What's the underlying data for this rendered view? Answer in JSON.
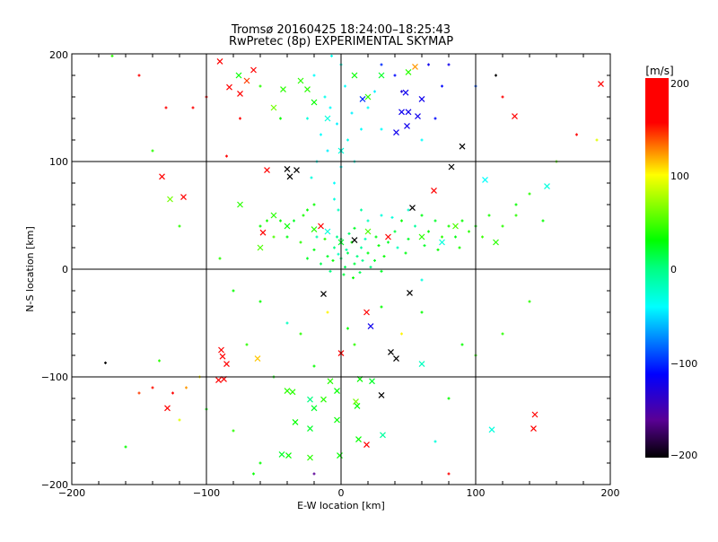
{
  "chart_data": {
    "type": "scatter",
    "title": "Tromsø 20160425 18:24:00–18:25:43",
    "subtitle": "RwPretec (8p) EXPERIMENTAL SKYMAP",
    "xlabel": "E-W location [km]",
    "ylabel": "N-S location [km]",
    "xlim": [
      -200,
      200
    ],
    "ylim": [
      -200,
      200
    ],
    "grid": true,
    "x_ticks": [
      "−200",
      "−100",
      "0",
      "100",
      "200"
    ],
    "y_ticks": [
      "−200",
      "−100",
      "0",
      "100",
      "200"
    ],
    "colorbar": {
      "label": "[m/s]",
      "range": [
        -200,
        200
      ],
      "ticks": [
        "200",
        "100",
        "0",
        "−100",
        "−200"
      ],
      "stops": [
        [
          -200,
          "#000000"
        ],
        [
          -160,
          "#5a0096"
        ],
        [
          -112,
          "#0000ff"
        ],
        [
          -41,
          "#00ffff"
        ],
        [
          0,
          "#00ff80"
        ],
        [
          29,
          "#00ff00"
        ],
        [
          98,
          "#ffff00"
        ],
        [
          153,
          "#ff0000"
        ],
        [
          200,
          "#ff0000"
        ]
      ]
    },
    "series_note_fields": [
      "x_km",
      "y_km",
      "velocity_mps"
    ],
    "crosses": [
      [
        -65,
        185,
        180
      ],
      [
        -83,
        169,
        170
      ],
      [
        -43,
        167,
        40
      ],
      [
        -55,
        92,
        170
      ],
      [
        -133,
        86,
        170
      ],
      [
        -117,
        67,
        170
      ],
      [
        -127,
        65,
        60
      ],
      [
        -58,
        34,
        170
      ],
      [
        -40,
        93,
        -200
      ],
      [
        -33,
        92,
        -200
      ],
      [
        -38,
        86,
        -200
      ],
      [
        90,
        114,
        -200
      ],
      [
        82,
        95,
        -200
      ],
      [
        53,
        57,
        -200
      ],
      [
        69,
        73,
        170
      ],
      [
        129,
        142,
        170
      ],
      [
        193,
        172,
        170
      ],
      [
        153,
        77,
        -30
      ],
      [
        107,
        83,
        -40
      ],
      [
        48,
        164,
        -120
      ],
      [
        50,
        146,
        -120
      ],
      [
        45,
        146,
        -120
      ],
      [
        57,
        142,
        -120
      ],
      [
        49,
        133,
        -120
      ],
      [
        41,
        127,
        -120
      ],
      [
        60,
        158,
        -120
      ],
      [
        16,
        158,
        -100
      ],
      [
        -13,
        -23,
        -200
      ],
      [
        19,
        -40,
        170
      ],
      [
        22,
        -53,
        -120
      ],
      [
        51,
        -22,
        -200
      ],
      [
        37,
        -77,
        -200
      ],
      [
        41,
        -83,
        -200
      ],
      [
        60,
        -88,
        -20
      ],
      [
        0,
        -78,
        170
      ],
      [
        -89,
        -75,
        170
      ],
      [
        -88,
        -81,
        170
      ],
      [
        -85,
        -88,
        170
      ],
      [
        -62,
        -83,
        110
      ],
      [
        -91,
        -103,
        170
      ],
      [
        -87,
        -102,
        170
      ],
      [
        -129,
        -129,
        170
      ],
      [
        144,
        -135,
        170
      ],
      [
        143,
        -148,
        170
      ],
      [
        112,
        -149,
        -30
      ],
      [
        19,
        -163,
        170
      ],
      [
        13,
        -158,
        30
      ],
      [
        -40,
        -113,
        40
      ],
      [
        -36,
        -114,
        40
      ],
      [
        -23,
        -121,
        0
      ],
      [
        -20,
        -129,
        20
      ],
      [
        -8,
        -104,
        40
      ],
      [
        -3,
        -113,
        30
      ],
      [
        -13,
        -121,
        40
      ],
      [
        14,
        -102,
        30
      ],
      [
        23,
        -104,
        20
      ],
      [
        30,
        -117,
        -200
      ],
      [
        11,
        -123,
        60
      ],
      [
        -3,
        -140,
        30
      ],
      [
        -23,
        -148,
        20
      ],
      [
        -34,
        -142,
        30
      ],
      [
        -39,
        -173,
        30
      ],
      [
        -44,
        -172,
        20
      ],
      [
        -23,
        -175,
        40
      ],
      [
        -1,
        -173,
        30
      ],
      [
        12,
        -127,
        30
      ],
      [
        31,
        -154,
        -10
      ],
      [
        -30,
        175,
        40
      ],
      [
        -25,
        167,
        40
      ],
      [
        10,
        180,
        30
      ],
      [
        30,
        180,
        20
      ],
      [
        50,
        183,
        40
      ],
      [
        55,
        188,
        120
      ],
      [
        20,
        160,
        40
      ],
      [
        -20,
        155,
        30
      ],
      [
        -10,
        140,
        -30
      ],
      [
        0,
        110,
        -30
      ],
      [
        -50,
        150,
        60
      ],
      [
        -70,
        175,
        140
      ],
      [
        -75,
        163,
        170
      ],
      [
        -90,
        193,
        170
      ],
      [
        -76,
        180,
        30
      ],
      [
        -40,
        40,
        30
      ],
      [
        -20,
        37,
        40
      ],
      [
        -15,
        40,
        170
      ],
      [
        -10,
        35,
        -30
      ],
      [
        0,
        25,
        20
      ],
      [
        10,
        27,
        -200
      ],
      [
        20,
        35,
        50
      ],
      [
        35,
        30,
        170
      ],
      [
        60,
        30,
        40
      ],
      [
        75,
        25,
        -30
      ],
      [
        85,
        40,
        50
      ],
      [
        115,
        25,
        40
      ],
      [
        -50,
        50,
        40
      ],
      [
        -60,
        20,
        50
      ],
      [
        -75,
        60,
        40
      ]
    ],
    "dots": [
      [
        0,
        10,
        5
      ],
      [
        5,
        15,
        10
      ],
      [
        -5,
        20,
        0
      ],
      [
        10,
        5,
        15
      ],
      [
        15,
        20,
        -10
      ],
      [
        -10,
        12,
        20
      ],
      [
        3,
        2,
        10
      ],
      [
        8,
        25,
        30
      ],
      [
        -3,
        30,
        -5
      ],
      [
        12,
        12,
        0
      ],
      [
        20,
        15,
        25
      ],
      [
        -15,
        5,
        10
      ],
      [
        18,
        28,
        -20
      ],
      [
        25,
        8,
        20
      ],
      [
        -8,
        -2,
        0
      ],
      [
        2,
        -5,
        15
      ],
      [
        28,
        22,
        30
      ],
      [
        -20,
        18,
        25
      ],
      [
        6,
        33,
        5
      ],
      [
        14,
        -3,
        10
      ],
      [
        -12,
        28,
        40
      ],
      [
        22,
        2,
        0
      ],
      [
        32,
        12,
        30
      ],
      [
        -25,
        10,
        20
      ],
      [
        4,
        18,
        -10
      ],
      [
        10,
        38,
        20
      ],
      [
        -6,
        8,
        30
      ],
      [
        16,
        8,
        -5
      ],
      [
        0,
        28,
        10
      ],
      [
        26,
        30,
        25
      ],
      [
        -18,
        30,
        -15
      ],
      [
        35,
        25,
        20
      ],
      [
        -2,
        14,
        -20
      ],
      [
        9,
        -8,
        30
      ],
      [
        30,
        -2,
        20
      ],
      [
        -45,
        45,
        30
      ],
      [
        -40,
        30,
        25
      ],
      [
        -35,
        45,
        20
      ],
      [
        -30,
        25,
        40
      ],
      [
        -28,
        50,
        35
      ],
      [
        40,
        35,
        15
      ],
      [
        45,
        45,
        30
      ],
      [
        50,
        28,
        20
      ],
      [
        55,
        40,
        -10
      ],
      [
        60,
        50,
        25
      ],
      [
        65,
        35,
        30
      ],
      [
        70,
        45,
        20
      ],
      [
        75,
        30,
        40
      ],
      [
        80,
        40,
        35
      ],
      [
        85,
        30,
        25
      ],
      [
        90,
        45,
        30
      ],
      [
        95,
        35,
        40
      ],
      [
        100,
        40,
        30
      ],
      [
        105,
        30,
        45
      ],
      [
        110,
        50,
        35
      ],
      [
        120,
        40,
        40
      ],
      [
        42,
        20,
        -20
      ],
      [
        48,
        15,
        25
      ],
      [
        38,
        48,
        -30
      ],
      [
        62,
        22,
        20
      ],
      [
        72,
        18,
        30
      ],
      [
        88,
        20,
        35
      ],
      [
        -50,
        30,
        50
      ],
      [
        -55,
        45,
        35
      ],
      [
        -60,
        40,
        30
      ],
      [
        -25,
        55,
        30
      ],
      [
        30,
        50,
        -30
      ],
      [
        20,
        45,
        -20
      ],
      [
        50,
        55,
        -25
      ],
      [
        130,
        50,
        40
      ],
      [
        150,
        45,
        30
      ],
      [
        -20,
        60,
        30
      ],
      [
        15,
        55,
        -10
      ],
      [
        -5,
        80,
        -40
      ],
      [
        0,
        95,
        -40
      ],
      [
        -10,
        110,
        -45
      ],
      [
        -15,
        125,
        -40
      ],
      [
        5,
        120,
        -35
      ],
      [
        -3,
        135,
        -45
      ],
      [
        -8,
        150,
        -40
      ],
      [
        -12,
        160,
        -35
      ],
      [
        3,
        170,
        -40
      ],
      [
        -20,
        180,
        -40
      ],
      [
        0,
        190,
        -30
      ],
      [
        -5,
        65,
        -30
      ],
      [
        -18,
        100,
        -35
      ],
      [
        -25,
        140,
        -30
      ],
      [
        8,
        145,
        -45
      ],
      [
        15,
        130,
        -40
      ],
      [
        20,
        150,
        -40
      ],
      [
        25,
        165,
        -45
      ],
      [
        -7,
        198,
        -35
      ],
      [
        10,
        100,
        -30
      ],
      [
        -22,
        85,
        -30
      ],
      [
        -2,
        55,
        -20
      ],
      [
        40,
        180,
        -110
      ],
      [
        30,
        190,
        -100
      ],
      [
        65,
        190,
        -120
      ],
      [
        75,
        170,
        -110
      ],
      [
        80,
        190,
        -120
      ],
      [
        45,
        165,
        -130
      ],
      [
        70,
        140,
        -110
      ],
      [
        100,
        170,
        -90
      ],
      [
        120,
        160,
        170
      ],
      [
        115,
        180,
        -200
      ],
      [
        60,
        120,
        -40
      ],
      [
        30,
        130,
        -40
      ],
      [
        -150,
        180,
        170
      ],
      [
        -100,
        160,
        170
      ],
      [
        -110,
        150,
        170
      ],
      [
        -130,
        150,
        170
      ],
      [
        -170,
        198,
        40
      ],
      [
        -60,
        170,
        40
      ],
      [
        -45,
        140,
        30
      ],
      [
        -75,
        140,
        170
      ],
      [
        -85,
        105,
        170
      ],
      [
        -140,
        110,
        40
      ],
      [
        160,
        100,
        50
      ],
      [
        175,
        125,
        170
      ],
      [
        190,
        120,
        90
      ],
      [
        130,
        60,
        30
      ],
      [
        140,
        70,
        40
      ],
      [
        -135,
        -85,
        40
      ],
      [
        -175,
        -87,
        -200
      ],
      [
        -150,
        -115,
        140
      ],
      [
        -140,
        -110,
        150
      ],
      [
        -125,
        -115,
        160
      ],
      [
        -115,
        -110,
        120
      ],
      [
        -105,
        -100,
        100
      ],
      [
        -120,
        -140,
        90
      ],
      [
        -160,
        -165,
        30
      ],
      [
        -100,
        -130,
        30
      ],
      [
        -60,
        -30,
        30
      ],
      [
        -40,
        -50,
        -20
      ],
      [
        -70,
        -70,
        40
      ],
      [
        -30,
        -60,
        40
      ],
      [
        -20,
        -90,
        30
      ],
      [
        10,
        -70,
        40
      ],
      [
        30,
        -35,
        30
      ],
      [
        60,
        -40,
        30
      ],
      [
        90,
        -70,
        30
      ],
      [
        80,
        -120,
        30
      ],
      [
        100,
        -80,
        40
      ],
      [
        -50,
        -100,
        30
      ],
      [
        -80,
        -150,
        40
      ],
      [
        -60,
        -180,
        30
      ],
      [
        -20,
        -190,
        -160
      ],
      [
        80,
        -190,
        170
      ],
      [
        70,
        -160,
        -30
      ],
      [
        120,
        -60,
        40
      ],
      [
        140,
        -30,
        40
      ],
      [
        -80,
        -20,
        30
      ],
      [
        -90,
        10,
        40
      ],
      [
        -120,
        40,
        40
      ],
      [
        -65,
        -190,
        30
      ],
      [
        -10,
        -40,
        100
      ],
      [
        5,
        -55,
        30
      ],
      [
        45,
        -60,
        100
      ],
      [
        60,
        -10,
        -30
      ]
    ]
  }
}
